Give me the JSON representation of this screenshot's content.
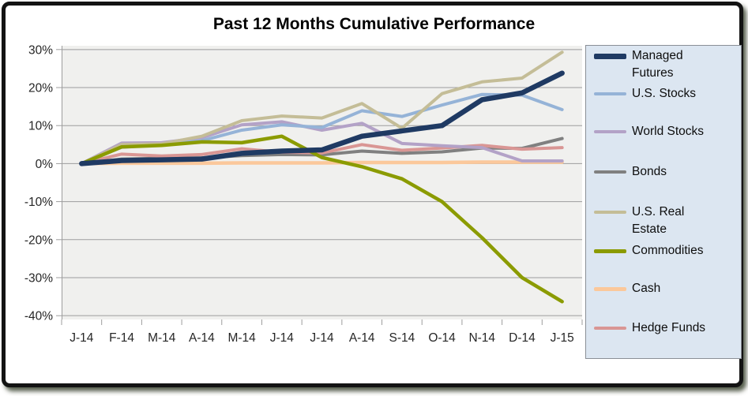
{
  "chart_data": {
    "type": "line",
    "title": "Past 12 Months Cumulative Performance",
    "xlabel": "",
    "ylabel": "",
    "categories": [
      "J-14",
      "F-14",
      "M-14",
      "A-14",
      "M-14",
      "J-14",
      "J-14",
      "A-14",
      "S-14",
      "O-14",
      "N-14",
      "D-14",
      "J-15"
    ],
    "y_tick_labels": [
      "30%",
      "20%",
      "10%",
      "0%",
      "-10%",
      "-20%",
      "-30%",
      "-40%"
    ],
    "y_tick_values": [
      30,
      20,
      10,
      0,
      -10,
      -20,
      -30,
      -40
    ],
    "ylim": [
      -41,
      31
    ],
    "grid": true,
    "legend_position": "right",
    "colors": {
      "plot_background": "#f0f0ee",
      "legend_background": "#dce6f1",
      "gridline": "#9d9d9d",
      "axis_text": "#262626"
    },
    "series": [
      {
        "name": "Managed Futures",
        "color": "#1f3a63",
        "width": 6.5,
        "z": 8,
        "values": [
          0,
          0.8,
          1.0,
          1.2,
          2.7,
          3.3,
          3.6,
          7.2,
          8.6,
          10.0,
          16.8,
          18.6,
          23.8
        ]
      },
      {
        "name": "U.S. Stocks",
        "color": "#95b3d7",
        "width": 4,
        "z": 5,
        "values": [
          0,
          4.3,
          5.0,
          6.0,
          8.8,
          10.2,
          9.5,
          13.9,
          12.4,
          15.4,
          18.2,
          18.0,
          14.2
        ]
      },
      {
        "name": "World Stocks",
        "color": "#b3a2c7",
        "width": 4,
        "z": 4,
        "values": [
          0,
          5.4,
          5.5,
          6.8,
          10.2,
          11.0,
          8.8,
          10.6,
          5.3,
          4.7,
          4.2,
          0.7,
          0.7
        ]
      },
      {
        "name": "Bonds",
        "color": "#808080",
        "width": 4,
        "z": 2,
        "values": [
          0,
          1.2,
          1.4,
          1.5,
          2.1,
          2.4,
          2.3,
          3.3,
          2.7,
          3.1,
          4.1,
          4.0,
          6.6
        ]
      },
      {
        "name": "U.S. Real Estate",
        "color": "#c4bd97",
        "width": 4,
        "z": 6,
        "values": [
          0,
          5.0,
          5.2,
          7.2,
          11.3,
          12.5,
          12.0,
          15.8,
          9.3,
          18.4,
          21.5,
          22.5,
          29.3
        ]
      },
      {
        "name": "Commodities",
        "color": "#8b9b00",
        "width": 4.5,
        "z": 7,
        "values": [
          0,
          4.4,
          4.8,
          5.7,
          5.5,
          7.2,
          1.6,
          -0.8,
          -4.0,
          -10.0,
          -19.5,
          -30.0,
          -36.3
        ]
      },
      {
        "name": "Cash",
        "color": "#fbc89b",
        "width": 4.5,
        "z": 1,
        "values": [
          0,
          0.1,
          0.1,
          0.1,
          0.2,
          0.2,
          0.2,
          0.3,
          0.3,
          0.3,
          0.4,
          0.4,
          0.4
        ]
      },
      {
        "name": "Hedge Funds",
        "color": "#d99694",
        "width": 4,
        "z": 3,
        "values": [
          0,
          2.5,
          2.0,
          2.4,
          3.9,
          3.0,
          2.8,
          5.0,
          3.5,
          4.1,
          4.8,
          3.8,
          4.2
        ]
      }
    ]
  }
}
